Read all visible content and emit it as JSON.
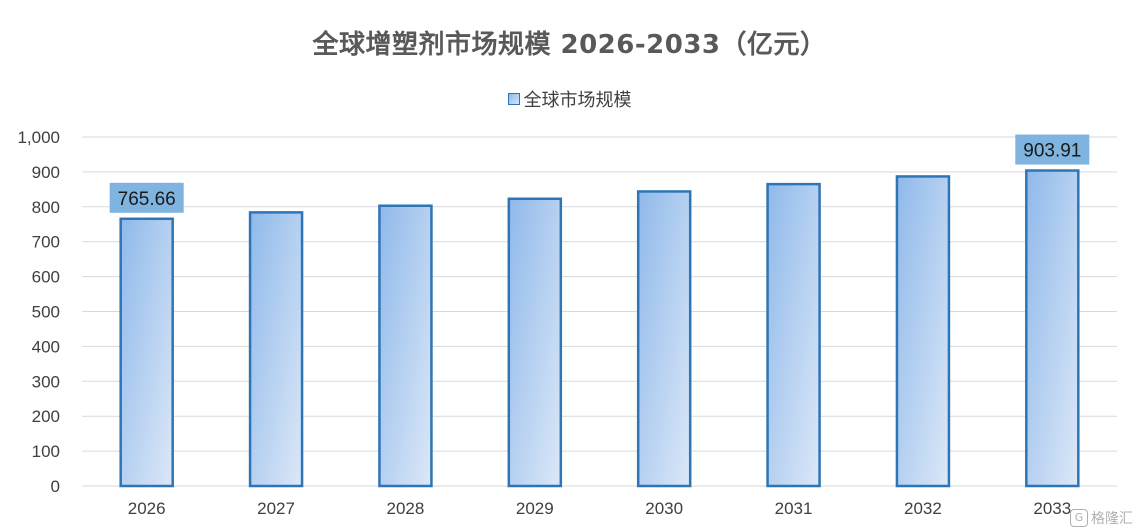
{
  "chart_data": {
    "type": "bar",
    "title": "全球增塑剂市场规模 2026-2033（亿元）",
    "categories": [
      "2026",
      "2027",
      "2028",
      "2029",
      "2030",
      "2031",
      "2032",
      "2033"
    ],
    "series": [
      {
        "name": "全球市场规模",
        "values": [
          765.66,
          784,
          803,
          823,
          844,
          865,
          887,
          903.91
        ]
      }
    ],
    "data_labels": [
      {
        "category": "2026",
        "text": "765.66"
      },
      {
        "category": "2033",
        "text": "903.91"
      }
    ],
    "y_ticks": [
      "0",
      "100",
      "200",
      "300",
      "400",
      "500",
      "600",
      "700",
      "800",
      "900",
      "1,000"
    ],
    "ylim": [
      0,
      1000
    ],
    "grid": true,
    "legend_position": "top-center",
    "colors": {
      "bar_fill_top": "#8fb9ea",
      "bar_fill_bottom": "#dce8f8",
      "bar_border": "#2e75b6",
      "label_bg": "#7fb3e0",
      "grid": "#d9d9d9"
    }
  },
  "watermark": {
    "text": "格隆汇",
    "icon": "g-logo-icon"
  }
}
